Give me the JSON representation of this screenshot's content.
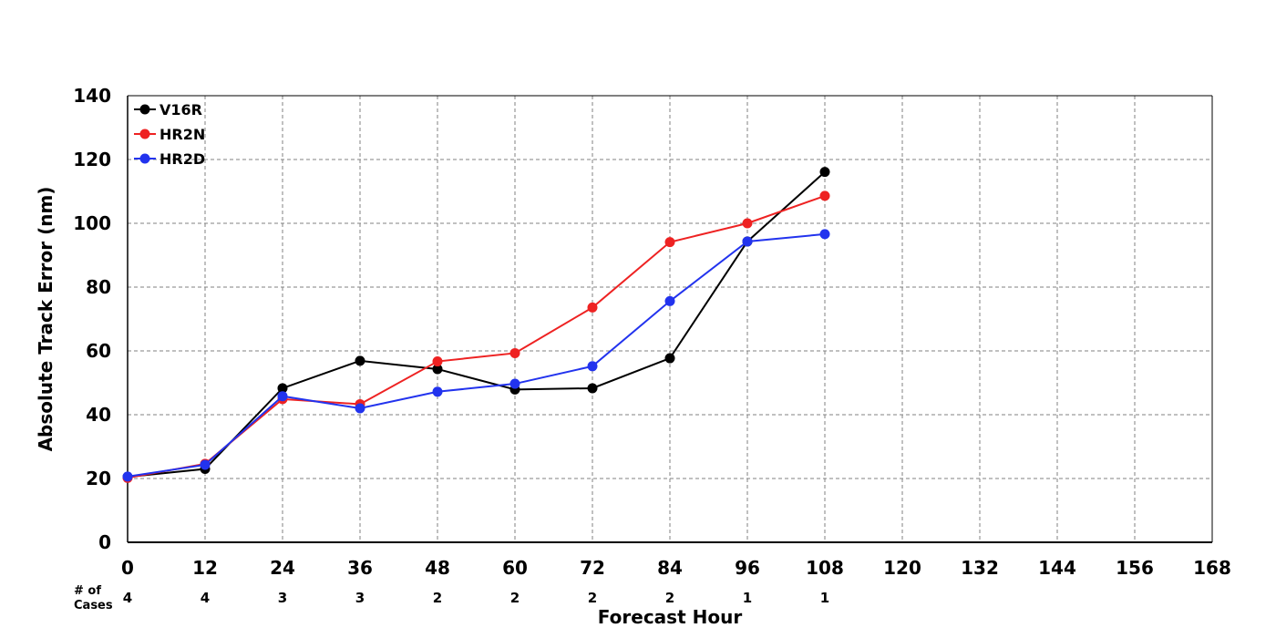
{
  "chart_data": {
    "type": "line",
    "title": "",
    "xlabel": "Forecast Hour",
    "ylabel": "Absolute Track Error (nm)",
    "xlim": [
      0,
      168
    ],
    "ylim": [
      0,
      140
    ],
    "x_ticks": [
      0,
      12,
      24,
      36,
      48,
      60,
      72,
      84,
      96,
      108,
      120,
      132,
      144,
      156,
      168
    ],
    "y_ticks": [
      0,
      20,
      40,
      60,
      80,
      100,
      120,
      140
    ],
    "grid": true,
    "legend_position": "top-left",
    "x": [
      0,
      12,
      24,
      36,
      48,
      60,
      72,
      84,
      96,
      108
    ],
    "series": [
      {
        "name": "V16R",
        "color": "#000000",
        "values": [
          20.5,
          23,
          48.3,
          56.9,
          54.3,
          47.9,
          48.3,
          57.7,
          94.3,
          116.1
        ]
      },
      {
        "name": "HR2N",
        "color": "#ee2222",
        "values": [
          20.2,
          24.6,
          44.9,
          43.3,
          56.7,
          59.3,
          73.6,
          94.1,
          100,
          108.6
        ]
      },
      {
        "name": "HR2D",
        "color": "#2233ee",
        "values": [
          20.6,
          24.3,
          45.8,
          42,
          47.2,
          49.7,
          55.2,
          75.6,
          94.3,
          96.6
        ]
      }
    ],
    "cases_label_line1": "# of",
    "cases_label_line2": "Cases",
    "cases": [
      4,
      4,
      3,
      3,
      2,
      2,
      2,
      2,
      1,
      1
    ]
  }
}
